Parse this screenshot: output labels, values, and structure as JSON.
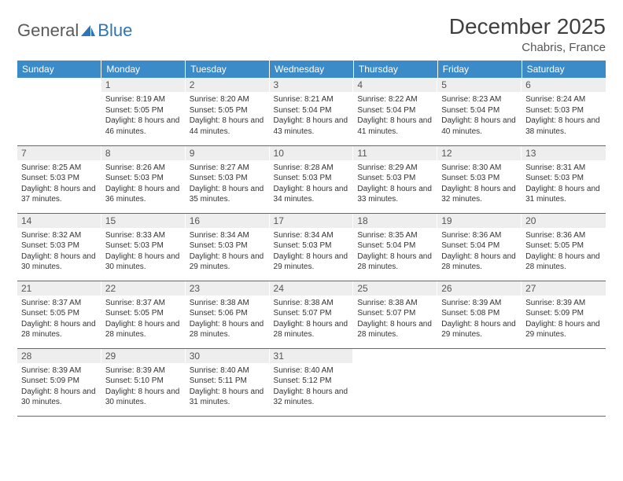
{
  "brand": {
    "part1": "General",
    "part2": "Blue"
  },
  "title": "December 2025",
  "location": "Chabris, France",
  "colors": {
    "header_bg": "#3b8bc9",
    "header_text": "#ffffff",
    "daynum_bg": "#eeeeee",
    "border": "#2e75b6",
    "brand_gray": "#5a5a5a",
    "brand_blue": "#2e75b6"
  },
  "weekdays": [
    "Sunday",
    "Monday",
    "Tuesday",
    "Wednesday",
    "Thursday",
    "Friday",
    "Saturday"
  ],
  "weeks": [
    [
      {
        "n": "",
        "sr": "",
        "ss": "",
        "dl": ""
      },
      {
        "n": "1",
        "sr": "Sunrise: 8:19 AM",
        "ss": "Sunset: 5:05 PM",
        "dl": "Daylight: 8 hours and 46 minutes."
      },
      {
        "n": "2",
        "sr": "Sunrise: 8:20 AM",
        "ss": "Sunset: 5:05 PM",
        "dl": "Daylight: 8 hours and 44 minutes."
      },
      {
        "n": "3",
        "sr": "Sunrise: 8:21 AM",
        "ss": "Sunset: 5:04 PM",
        "dl": "Daylight: 8 hours and 43 minutes."
      },
      {
        "n": "4",
        "sr": "Sunrise: 8:22 AM",
        "ss": "Sunset: 5:04 PM",
        "dl": "Daylight: 8 hours and 41 minutes."
      },
      {
        "n": "5",
        "sr": "Sunrise: 8:23 AM",
        "ss": "Sunset: 5:04 PM",
        "dl": "Daylight: 8 hours and 40 minutes."
      },
      {
        "n": "6",
        "sr": "Sunrise: 8:24 AM",
        "ss": "Sunset: 5:03 PM",
        "dl": "Daylight: 8 hours and 38 minutes."
      }
    ],
    [
      {
        "n": "7",
        "sr": "Sunrise: 8:25 AM",
        "ss": "Sunset: 5:03 PM",
        "dl": "Daylight: 8 hours and 37 minutes."
      },
      {
        "n": "8",
        "sr": "Sunrise: 8:26 AM",
        "ss": "Sunset: 5:03 PM",
        "dl": "Daylight: 8 hours and 36 minutes."
      },
      {
        "n": "9",
        "sr": "Sunrise: 8:27 AM",
        "ss": "Sunset: 5:03 PM",
        "dl": "Daylight: 8 hours and 35 minutes."
      },
      {
        "n": "10",
        "sr": "Sunrise: 8:28 AM",
        "ss": "Sunset: 5:03 PM",
        "dl": "Daylight: 8 hours and 34 minutes."
      },
      {
        "n": "11",
        "sr": "Sunrise: 8:29 AM",
        "ss": "Sunset: 5:03 PM",
        "dl": "Daylight: 8 hours and 33 minutes."
      },
      {
        "n": "12",
        "sr": "Sunrise: 8:30 AM",
        "ss": "Sunset: 5:03 PM",
        "dl": "Daylight: 8 hours and 32 minutes."
      },
      {
        "n": "13",
        "sr": "Sunrise: 8:31 AM",
        "ss": "Sunset: 5:03 PM",
        "dl": "Daylight: 8 hours and 31 minutes."
      }
    ],
    [
      {
        "n": "14",
        "sr": "Sunrise: 8:32 AM",
        "ss": "Sunset: 5:03 PM",
        "dl": "Daylight: 8 hours and 30 minutes."
      },
      {
        "n": "15",
        "sr": "Sunrise: 8:33 AM",
        "ss": "Sunset: 5:03 PM",
        "dl": "Daylight: 8 hours and 30 minutes."
      },
      {
        "n": "16",
        "sr": "Sunrise: 8:34 AM",
        "ss": "Sunset: 5:03 PM",
        "dl": "Daylight: 8 hours and 29 minutes."
      },
      {
        "n": "17",
        "sr": "Sunrise: 8:34 AM",
        "ss": "Sunset: 5:03 PM",
        "dl": "Daylight: 8 hours and 29 minutes."
      },
      {
        "n": "18",
        "sr": "Sunrise: 8:35 AM",
        "ss": "Sunset: 5:04 PM",
        "dl": "Daylight: 8 hours and 28 minutes."
      },
      {
        "n": "19",
        "sr": "Sunrise: 8:36 AM",
        "ss": "Sunset: 5:04 PM",
        "dl": "Daylight: 8 hours and 28 minutes."
      },
      {
        "n": "20",
        "sr": "Sunrise: 8:36 AM",
        "ss": "Sunset: 5:05 PM",
        "dl": "Daylight: 8 hours and 28 minutes."
      }
    ],
    [
      {
        "n": "21",
        "sr": "Sunrise: 8:37 AM",
        "ss": "Sunset: 5:05 PM",
        "dl": "Daylight: 8 hours and 28 minutes."
      },
      {
        "n": "22",
        "sr": "Sunrise: 8:37 AM",
        "ss": "Sunset: 5:05 PM",
        "dl": "Daylight: 8 hours and 28 minutes."
      },
      {
        "n": "23",
        "sr": "Sunrise: 8:38 AM",
        "ss": "Sunset: 5:06 PM",
        "dl": "Daylight: 8 hours and 28 minutes."
      },
      {
        "n": "24",
        "sr": "Sunrise: 8:38 AM",
        "ss": "Sunset: 5:07 PM",
        "dl": "Daylight: 8 hours and 28 minutes."
      },
      {
        "n": "25",
        "sr": "Sunrise: 8:38 AM",
        "ss": "Sunset: 5:07 PM",
        "dl": "Daylight: 8 hours and 28 minutes."
      },
      {
        "n": "26",
        "sr": "Sunrise: 8:39 AM",
        "ss": "Sunset: 5:08 PM",
        "dl": "Daylight: 8 hours and 29 minutes."
      },
      {
        "n": "27",
        "sr": "Sunrise: 8:39 AM",
        "ss": "Sunset: 5:09 PM",
        "dl": "Daylight: 8 hours and 29 minutes."
      }
    ],
    [
      {
        "n": "28",
        "sr": "Sunrise: 8:39 AM",
        "ss": "Sunset: 5:09 PM",
        "dl": "Daylight: 8 hours and 30 minutes."
      },
      {
        "n": "29",
        "sr": "Sunrise: 8:39 AM",
        "ss": "Sunset: 5:10 PM",
        "dl": "Daylight: 8 hours and 30 minutes."
      },
      {
        "n": "30",
        "sr": "Sunrise: 8:40 AM",
        "ss": "Sunset: 5:11 PM",
        "dl": "Daylight: 8 hours and 31 minutes."
      },
      {
        "n": "31",
        "sr": "Sunrise: 8:40 AM",
        "ss": "Sunset: 5:12 PM",
        "dl": "Daylight: 8 hours and 32 minutes."
      },
      {
        "n": "",
        "sr": "",
        "ss": "",
        "dl": ""
      },
      {
        "n": "",
        "sr": "",
        "ss": "",
        "dl": ""
      },
      {
        "n": "",
        "sr": "",
        "ss": "",
        "dl": ""
      }
    ]
  ]
}
